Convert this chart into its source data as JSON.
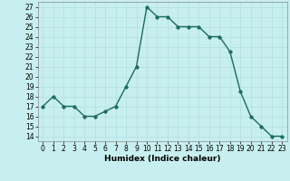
{
  "x": [
    0,
    1,
    2,
    3,
    4,
    5,
    6,
    7,
    8,
    9,
    10,
    11,
    12,
    13,
    14,
    15,
    16,
    17,
    18,
    19,
    20,
    21,
    22,
    23
  ],
  "y": [
    17,
    18,
    17,
    17,
    16,
    16,
    16.5,
    17,
    19,
    21,
    27,
    26,
    26,
    25,
    25,
    25,
    24,
    24,
    22.5,
    18.5,
    16,
    15,
    14,
    14
  ],
  "line_color": "#1a6b5e",
  "marker_color": "#1a6b5e",
  "bg_color": "#c8efef",
  "grid_color": "#b0dede",
  "xlabel": "Humidex (Indice chaleur)",
  "ylim": [
    13.5,
    27.5
  ],
  "xlim": [
    -0.5,
    23.5
  ],
  "yticks": [
    14,
    15,
    16,
    17,
    18,
    19,
    20,
    21,
    22,
    23,
    24,
    25,
    26,
    27
  ],
  "xticks": [
    0,
    1,
    2,
    3,
    4,
    5,
    6,
    7,
    8,
    9,
    10,
    11,
    12,
    13,
    14,
    15,
    16,
    17,
    18,
    19,
    20,
    21,
    22,
    23
  ],
  "xlabel_fontsize": 6.5,
  "tick_fontsize": 5.5,
  "marker_size": 2.5,
  "line_width": 1.0
}
